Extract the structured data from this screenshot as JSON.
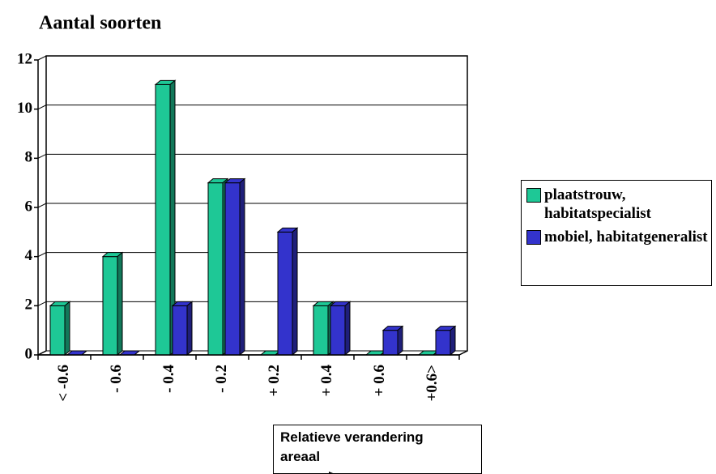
{
  "chart_data": {
    "type": "bar",
    "title": "Aantal soorten",
    "x_label": "Relatieve verandering areaal",
    "categories": [
      "< -0.6",
      "- 0.6",
      "- 0.4",
      "- 0.2",
      "+ 0.2",
      "+ 0.4",
      "+ 0.6",
      "+0.6>"
    ],
    "series": [
      {
        "name": "plaatstrouw, habitatspecialist",
        "color": "#1ec896",
        "values": [
          2,
          4,
          11,
          7,
          0,
          2,
          0,
          0
        ]
      },
      {
        "name": "mobiel, habitatgeneralist",
        "color": "#3333cc",
        "values": [
          0,
          0,
          2,
          7,
          5,
          2,
          1,
          1
        ]
      }
    ],
    "ylim": [
      0,
      12
    ],
    "yticks": [
      0,
      2,
      4,
      6,
      8,
      10,
      12
    ],
    "grid": true,
    "legend": "right"
  }
}
